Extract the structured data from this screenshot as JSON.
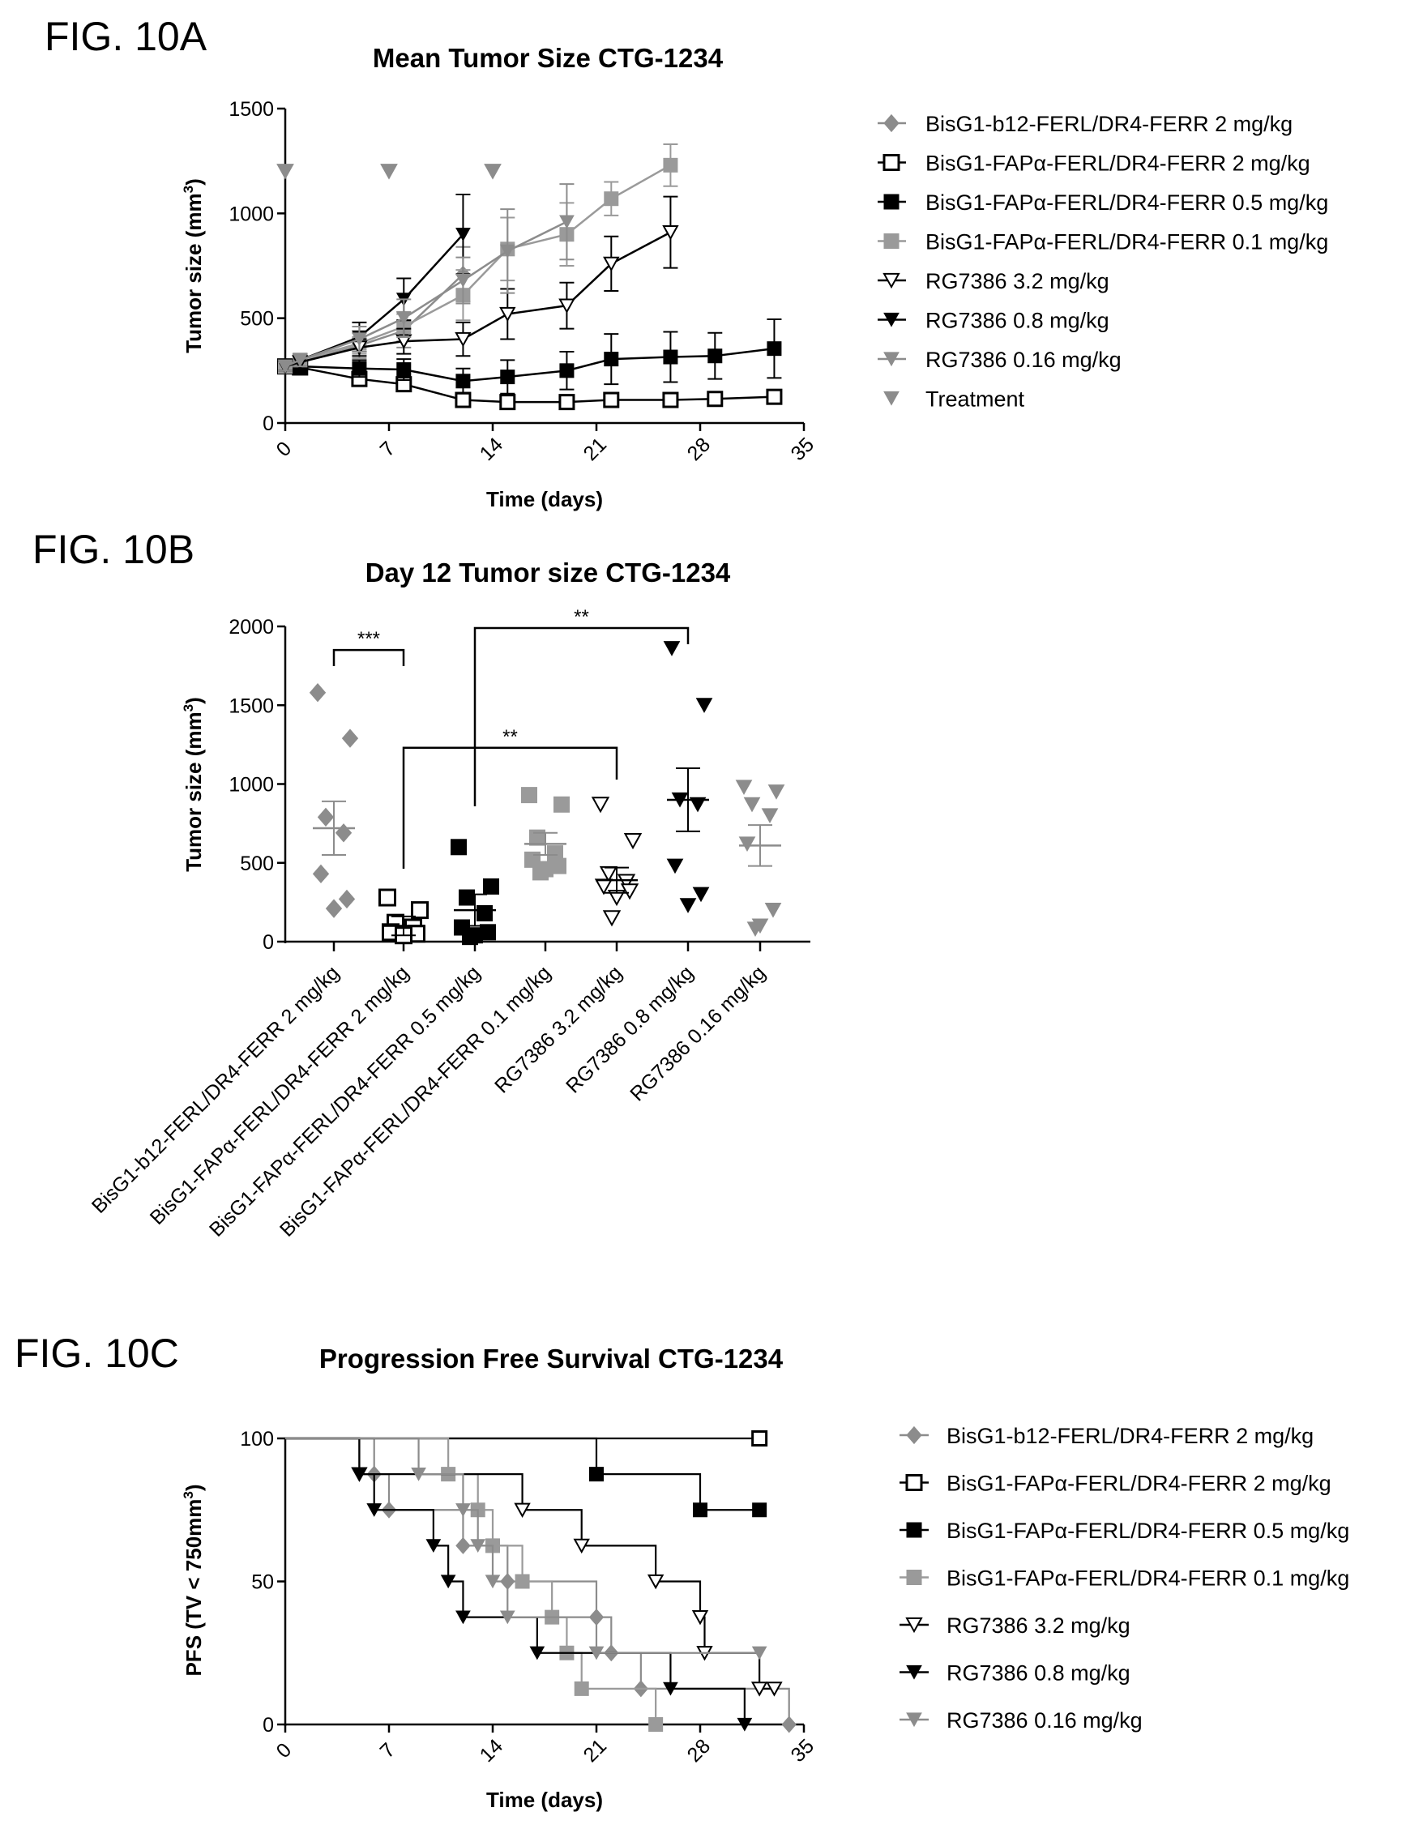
{
  "colors": {
    "black": "#000000",
    "gray": "#8c8c8c",
    "darkgray": "#555555",
    "lightgray": "#a8a8a8"
  },
  "series_styles": [
    {
      "marker": "diamond",
      "fill": "#8c8c8c",
      "stroke": "#8c8c8c",
      "line": "#8c8c8c"
    },
    {
      "marker": "square-open",
      "fill": "#ffffff",
      "stroke": "#000000",
      "line": "#000000"
    },
    {
      "marker": "square-black",
      "fill": "#000000",
      "stroke": "#000000",
      "line": "#000000"
    },
    {
      "marker": "square-gray",
      "fill": "#9a9a9a",
      "stroke": "#9a9a9a",
      "line": "#9a9a9a"
    },
    {
      "marker": "triangle-open",
      "fill": "#ffffff",
      "stroke": "#000000",
      "line": "#000000"
    },
    {
      "marker": "triangle-black",
      "fill": "#000000",
      "stroke": "#000000",
      "line": "#000000"
    },
    {
      "marker": "triangle-gray",
      "fill": "#8c8c8c",
      "stroke": "#8c8c8c",
      "line": "#8c8c8c"
    },
    {
      "marker": "triangle-gray",
      "fill": "#8c8c8c",
      "stroke": "#8c8c8c",
      "line": "#8c8c8c"
    }
  ],
  "chart_data": [
    {
      "panel": "FIG. 10A",
      "type": "line",
      "title": "Mean Tumor Size CTG-1234",
      "xlabel": "Time (days)",
      "ylabel": "Tumor size (mm3)",
      "ylabel_parts": [
        "Tumor size (mm",
        "3",
        ")"
      ],
      "xlim": [
        0,
        35
      ],
      "ylim": [
        0,
        1500
      ],
      "xticks": [
        0,
        7,
        14,
        21,
        28,
        35
      ],
      "yticks": [
        0,
        500,
        1000,
        1500
      ],
      "legend_position": "right",
      "series": [
        {
          "name": "BisG1-b12-FERL/DR4-FERR 2 mg/kg",
          "x": [
            0,
            1,
            5,
            8,
            12
          ],
          "y": [
            270,
            290,
            370,
            440,
            710
          ],
          "err": [
            20,
            30,
            60,
            80,
            130
          ]
        },
        {
          "name": "BisG1-FAPα-FERL/DR4-FERR 2 mg/kg",
          "x": [
            0,
            1,
            5,
            8,
            12,
            15,
            19,
            22,
            26,
            29,
            33
          ],
          "y": [
            270,
            265,
            210,
            185,
            110,
            100,
            100,
            110,
            110,
            115,
            125
          ],
          "err": [
            20,
            20,
            30,
            30,
            30,
            20,
            20,
            20,
            20,
            20,
            25
          ]
        },
        {
          "name": "BisG1-FAPα-FERL/DR4-FERR 0.5 mg/kg",
          "x": [
            0,
            1,
            5,
            8,
            12,
            15,
            19,
            22,
            26,
            29,
            33
          ],
          "y": [
            270,
            270,
            260,
            255,
            200,
            220,
            250,
            305,
            315,
            320,
            355
          ],
          "err": [
            20,
            20,
            40,
            50,
            60,
            80,
            90,
            120,
            120,
            110,
            140
          ]
        },
        {
          "name": "BisG1-FAPα-FERL/DR4-FERR 0.1 mg/kg",
          "x": [
            0,
            1,
            5,
            8,
            12,
            15,
            19,
            22,
            26
          ],
          "y": [
            270,
            300,
            380,
            460,
            610,
            830,
            900,
            1070,
            1230
          ],
          "err": [
            20,
            30,
            50,
            70,
            120,
            150,
            150,
            80,
            100
          ]
        },
        {
          "name": "RG7386 3.2 mg/kg",
          "x": [
            0,
            1,
            5,
            8,
            12,
            15,
            19,
            22,
            26
          ],
          "y": [
            270,
            290,
            360,
            390,
            400,
            520,
            560,
            760,
            910
          ],
          "err": [
            20,
            30,
            40,
            60,
            80,
            120,
            110,
            130,
            170
          ]
        },
        {
          "name": "RG7386 0.8 mg/kg",
          "x": [
            0,
            1,
            5,
            8,
            12
          ],
          "y": [
            270,
            300,
            410,
            590,
            900
          ],
          "err": [
            20,
            30,
            70,
            100,
            190
          ]
        },
        {
          "name": "RG7386 0.16 mg/kg",
          "x": [
            0,
            1,
            5,
            8,
            12,
            15,
            19
          ],
          "y": [
            270,
            300,
            400,
            500,
            680,
            820,
            960
          ],
          "err": [
            20,
            30,
            60,
            90,
            110,
            200,
            180
          ]
        }
      ],
      "treatment": {
        "name": "Treatment",
        "x": [
          0,
          7,
          14
        ],
        "y": [
          1200,
          1200,
          1200
        ]
      }
    },
    {
      "panel": "FIG. 10B",
      "type": "scatter",
      "title": "Day 12 Tumor size CTG-1234",
      "ylabel": "Tumor size (mm3)",
      "ylabel_parts": [
        "Tumor size (mm",
        "3",
        ")"
      ],
      "ylim": [
        0,
        2000
      ],
      "yticks": [
        0,
        500,
        1000,
        1500,
        2000
      ],
      "categories": [
        "BisG1-b12-FERL/DR4-FERR 2 mg/kg",
        "BisG1-FAPα-FERL/DR4-FERR 2 mg/kg",
        "BisG1-FAPα-FERL/DR4-FERR 0.5 mg/kg",
        "BisG1-FAPα-FERL/DR4-FERR 0.1 mg/kg",
        "RG7386 3.2 mg/kg",
        "RG7386 0.8 mg/kg",
        "RG7386 0.16 mg/kg"
      ],
      "groups": [
        {
          "points": [
            1580,
            1290,
            790,
            690,
            430,
            270,
            210
          ],
          "mean": 720,
          "sem": 170
        },
        {
          "points": [
            280,
            200,
            120,
            90,
            60,
            50,
            40
          ],
          "mean": 100,
          "sem": 60
        },
        {
          "points": [
            600,
            350,
            280,
            180,
            90,
            60,
            40,
            30
          ],
          "mean": 200,
          "sem": 100
        },
        {
          "points": [
            930,
            870,
            660,
            560,
            520,
            480,
            460,
            440
          ],
          "mean": 620,
          "sem": 70
        },
        {
          "points": [
            870,
            640,
            430,
            380,
            350,
            320,
            280,
            150
          ],
          "mean": 390,
          "sem": 80
        },
        {
          "points": [
            1860,
            1500,
            900,
            870,
            480,
            300,
            230
          ],
          "mean": 900,
          "sem": 200
        },
        {
          "points": [
            980,
            950,
            870,
            800,
            620,
            200,
            100,
            80
          ],
          "mean": 610,
          "sem": 130
        }
      ],
      "significance": [
        {
          "from": 0,
          "to": 1,
          "label": "***",
          "y": 1850
        },
        {
          "from": 1,
          "to": 4,
          "label": "**",
          "y": 1230
        },
        {
          "from": 2,
          "to": 5,
          "label": "**",
          "y": 2000
        }
      ]
    },
    {
      "panel": "FIG. 10C",
      "type": "line",
      "subtype": "step",
      "title": "Progression Free Survival CTG-1234",
      "xlabel": "Time (days)",
      "ylabel": "PFS (TV < 750mm3)",
      "ylabel_parts": [
        "PFS (TV < 750mm",
        "3",
        ")"
      ],
      "xlim": [
        0,
        35
      ],
      "ylim": [
        0,
        100
      ],
      "xticks": [
        0,
        7,
        14,
        21,
        28,
        35
      ],
      "yticks": [
        0,
        50,
        100
      ],
      "legend_position": "right",
      "series": [
        {
          "name": "BisG1-b12-FERL/DR4-FERR 2 mg/kg",
          "steps": [
            [
              0,
              100
            ],
            [
              6,
              87.5
            ],
            [
              7,
              75
            ],
            [
              12,
              62.5
            ],
            [
              15,
              50
            ],
            [
              21,
              37.5
            ],
            [
              22,
              25
            ],
            [
              24,
              12.5
            ],
            [
              34,
              0
            ]
          ]
        },
        {
          "name": "BisG1-FAPα-FERL/DR4-FERR 2 mg/kg",
          "steps": [
            [
              0,
              100
            ],
            [
              32,
              100
            ]
          ]
        },
        {
          "name": "BisG1-FAPα-FERL/DR4-FERR 0.5 mg/kg",
          "steps": [
            [
              0,
              100
            ],
            [
              21,
              87.5
            ],
            [
              28,
              75
            ],
            [
              32,
              75
            ]
          ]
        },
        {
          "name": "BisG1-FAPα-FERL/DR4-FERR 0.1 mg/kg",
          "steps": [
            [
              0,
              100
            ],
            [
              11,
              87.5
            ],
            [
              13,
              75
            ],
            [
              14,
              62.5
            ],
            [
              16,
              50
            ],
            [
              18,
              37.5
            ],
            [
              19,
              25
            ],
            [
              20,
              12.5
            ],
            [
              25,
              0
            ]
          ]
        },
        {
          "name": "RG7386 3.2 mg/kg",
          "steps": [
            [
              0,
              100
            ],
            [
              5,
              87.5
            ],
            [
              16,
              75
            ],
            [
              20,
              62.5
            ],
            [
              25,
              50
            ],
            [
              28,
              37.5
            ],
            [
              28.3,
              25
            ],
            [
              32,
              12.5
            ],
            [
              33,
              12.5
            ]
          ]
        },
        {
          "name": "RG7386 0.8 mg/kg",
          "steps": [
            [
              0,
              100
            ],
            [
              5,
              87.5
            ],
            [
              6,
              75
            ],
            [
              10,
              62.5
            ],
            [
              11,
              50
            ],
            [
              12,
              37.5
            ],
            [
              17,
              25
            ],
            [
              26,
              12.5
            ],
            [
              31,
              0
            ]
          ]
        },
        {
          "name": "RG7386 0.16 mg/kg",
          "steps": [
            [
              0,
              100
            ],
            [
              9,
              87.5
            ],
            [
              12,
              75
            ],
            [
              13,
              62.5
            ],
            [
              14,
              50
            ],
            [
              15,
              37.5
            ],
            [
              21,
              25
            ],
            [
              32,
              25
            ]
          ]
        }
      ]
    }
  ]
}
